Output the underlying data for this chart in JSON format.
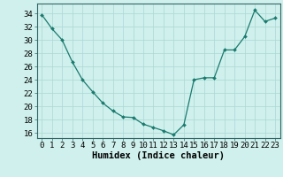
{
  "x": [
    0,
    1,
    2,
    3,
    4,
    5,
    6,
    7,
    8,
    9,
    10,
    11,
    12,
    13,
    14,
    15,
    16,
    17,
    18,
    19,
    20,
    21,
    22,
    23
  ],
  "y": [
    33.8,
    31.7,
    30.0,
    26.7,
    24.0,
    22.2,
    20.5,
    19.3,
    18.4,
    18.3,
    17.3,
    16.8,
    16.3,
    15.7,
    17.2,
    24.0,
    24.3,
    24.3,
    28.5,
    28.5,
    30.5,
    34.5,
    32.8,
    33.3
  ],
  "line_color": "#1a7a6e",
  "marker": "D",
  "marker_size": 2.0,
  "bg_color": "#cff0ec",
  "grid_color": "#aad8d4",
  "xlabel": "Humidex (Indice chaleur)",
  "yticks": [
    16,
    18,
    20,
    22,
    24,
    26,
    28,
    30,
    32,
    34
  ],
  "xlim": [
    -0.5,
    23.5
  ],
  "ylim": [
    15.2,
    35.5
  ],
  "xlabel_fontsize": 7.5,
  "tick_fontsize": 6.5,
  "linewidth": 0.9
}
